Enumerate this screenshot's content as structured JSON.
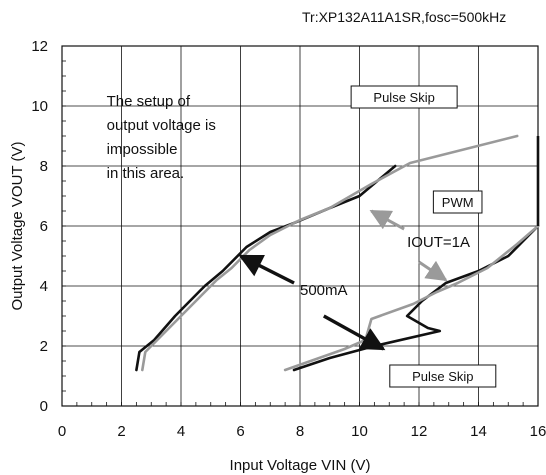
{
  "chart_data": {
    "type": "line",
    "title": "Tr:XP132A11A1SR,fosc=500kHz",
    "xlabel": "Input Voltage VIN (V)",
    "ylabel": "Output Voltage VOUT (V)",
    "xlim": [
      0,
      16
    ],
    "ylim": [
      0,
      12
    ],
    "x_ticks": [
      "0",
      "2",
      "4",
      "6",
      "8",
      "10",
      "12",
      "14",
      "16"
    ],
    "y_ticks": [
      "0",
      "2",
      "4",
      "6",
      "8",
      "10",
      "12"
    ],
    "grid": true,
    "series": [
      {
        "name": "500mA",
        "color": "#111111",
        "segments": [
          [
            [
              2.5,
              1.2
            ],
            [
              2.6,
              1.8
            ],
            [
              3.1,
              2.2
            ],
            [
              3.8,
              3.0
            ],
            [
              4.6,
              3.8
            ],
            [
              4.8,
              4.0
            ],
            [
              5.4,
              4.5
            ],
            [
              6.2,
              5.3
            ],
            [
              7.0,
              5.8
            ],
            [
              7.8,
              6.1
            ],
            [
              9.0,
              6.6
            ],
            [
              10.0,
              7.0
            ],
            [
              11.2,
              8.0
            ]
          ],
          [
            [
              7.8,
              1.2
            ],
            [
              9.0,
              1.6
            ],
            [
              10.5,
              2.0
            ],
            [
              12.7,
              2.5
            ],
            [
              12.3,
              2.6
            ],
            [
              11.6,
              3.0
            ],
            [
              12.1,
              3.5
            ],
            [
              12.9,
              4.1
            ],
            [
              14.0,
              4.5
            ],
            [
              15.0,
              5.0
            ],
            [
              16.0,
              6.0
            ]
          ]
        ]
      },
      {
        "name": "IOUT=1A",
        "color": "#9a9a9a",
        "segments": [
          [
            [
              2.7,
              1.2
            ],
            [
              2.8,
              1.8
            ],
            [
              3.3,
              2.3
            ],
            [
              4.0,
              3.0
            ],
            [
              4.7,
              3.7
            ],
            [
              5.2,
              4.2
            ],
            [
              5.7,
              4.6
            ],
            [
              6.3,
              5.2
            ],
            [
              7.0,
              5.7
            ],
            [
              8.0,
              6.2
            ],
            [
              9.0,
              6.6
            ],
            [
              10.4,
              7.4
            ],
            [
              11.7,
              8.1
            ],
            [
              15.3,
              9.0
            ]
          ],
          [
            [
              7.5,
              1.2
            ],
            [
              9.5,
              1.9
            ],
            [
              10.2,
              2.2
            ],
            [
              10.4,
              2.9
            ],
            [
              11.8,
              3.4
            ],
            [
              12.6,
              3.8
            ],
            [
              13.3,
              4.1
            ],
            [
              14.3,
              4.6
            ],
            [
              15.3,
              5.4
            ],
            [
              16.0,
              6.0
            ]
          ]
        ]
      }
    ],
    "region_boundary": {
      "color": "#111111",
      "points": [
        [
          16.0,
          6.0
        ],
        [
          16.0,
          9.0
        ]
      ]
    },
    "annotations": [
      {
        "kind": "text",
        "lines": [
          "The setup of",
          "output voltage is",
          "impossible",
          "in this area."
        ],
        "x": 1.5,
        "y": 10.0
      },
      {
        "kind": "boxed",
        "text": "Pulse Skip",
        "x": 11.5,
        "y": 10.3
      },
      {
        "kind": "boxed",
        "text": "PWM",
        "x": 13.3,
        "y": 6.8
      },
      {
        "kind": "boxed",
        "text": "Pulse Skip",
        "x": 12.8,
        "y": 1.0
      },
      {
        "kind": "text",
        "lines": [
          "IOUT=1A"
        ],
        "x": 11.6,
        "y": 5.3
      },
      {
        "kind": "text",
        "lines": [
          "500mA"
        ],
        "x": 8.0,
        "y": 3.7
      }
    ],
    "arrows": [
      {
        "label": "500mA",
        "color": "#111111",
        "from": [
          7.8,
          4.1
        ],
        "to": [
          6.0,
          5.0
        ]
      },
      {
        "label": "500mA",
        "color": "#111111",
        "from": [
          8.8,
          3.0
        ],
        "to": [
          10.8,
          1.9
        ]
      },
      {
        "label": "IOUT=1A",
        "color": "#9a9a9a",
        "from": [
          11.5,
          5.9
        ],
        "to": [
          10.4,
          6.5
        ]
      },
      {
        "label": "IOUT=1A",
        "color": "#9a9a9a",
        "from": [
          12.0,
          4.8
        ],
        "to": [
          12.9,
          4.2
        ]
      }
    ]
  }
}
